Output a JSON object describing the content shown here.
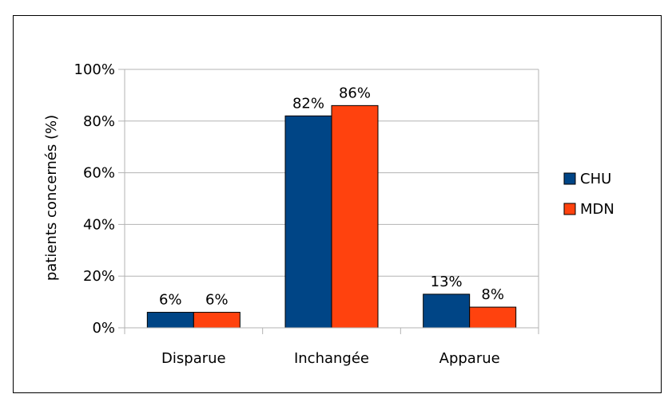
{
  "chart_data": {
    "type": "bar",
    "categories": [
      "Disparue",
      "Inchangée",
      "Apparue"
    ],
    "series": [
      {
        "name": "CHU",
        "values": [
          6,
          82,
          13
        ],
        "labels": [
          "6%",
          "82%",
          "13%"
        ],
        "color": "#004586"
      },
      {
        "name": "MDN",
        "values": [
          6,
          86,
          8
        ],
        "labels": [
          "6%",
          "86%",
          "8%"
        ],
        "color": "#ff420e"
      }
    ],
    "ylabel": "patients concernés (%)",
    "ylim": [
      0,
      100
    ],
    "yticks": [
      0,
      20,
      40,
      60,
      80,
      100
    ],
    "ytick_labels": [
      "0%",
      "20%",
      "40%",
      "60%",
      "80%",
      "100%"
    ],
    "grid": true,
    "legend_position": "right"
  }
}
